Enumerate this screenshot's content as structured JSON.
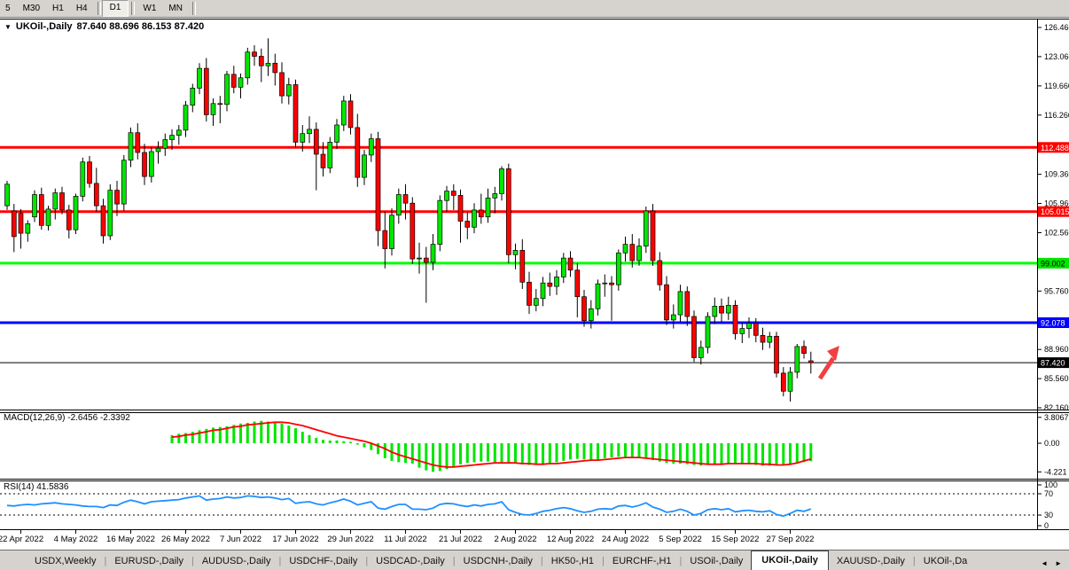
{
  "toolbar": {
    "groups": [
      [
        "5",
        "M30",
        "H1",
        "H4"
      ],
      [
        "D1"
      ],
      [
        "W1",
        "MN"
      ]
    ],
    "active": "D1"
  },
  "chart_title": {
    "symbol": "UKOil-,Daily",
    "ohlc": "87.640 88.696 86.153 87.420"
  },
  "indicators": {
    "macd_label": "MACD(12,26,9) -2.6456 -2.3392",
    "rsi_label": "RSI(14) 41.5836"
  },
  "icons": {
    "chart_menu": "▼",
    "tab_scroll_left": "◄",
    "tab_scroll_right": "►"
  },
  "tabs": {
    "items": [
      {
        "label": "USDX,Weekly"
      },
      {
        "label": "EURUSD-,Daily"
      },
      {
        "label": "AUDUSD-,Daily"
      },
      {
        "label": "USDCHF-,Daily"
      },
      {
        "label": "USDCAD-,Daily"
      },
      {
        "label": "USDCNH-,Daily"
      },
      {
        "label": "HK50-,H1"
      },
      {
        "label": "EURCHF-,H1"
      },
      {
        "label": "USOil-,Daily"
      },
      {
        "label": "UKOil-,Daily",
        "active": true
      },
      {
        "label": "XAUUSD-,Daily"
      },
      {
        "label": "UKOil-,Da",
        "truncated": true
      }
    ]
  },
  "chart_data": {
    "type": "candlestick",
    "symbol": "UKOil-,Daily",
    "timeframe": "D1",
    "last_ohlc": {
      "open": "87.640",
      "high": "88.696",
      "low": "86.153",
      "close": "87.420"
    },
    "colors": {
      "up": "#00E600",
      "down": "#FF0000",
      "wick": "#000000",
      "bg": "#FFFFFF"
    },
    "price_axis": {
      "ticks": [
        "126.460",
        "123.060",
        "119.660",
        "116.260",
        "109.360",
        "105.960",
        "102.560",
        "95.760",
        "88.960",
        "85.560",
        "82.160"
      ],
      "tags": [
        {
          "label": "112.488",
          "bg": "#FF0000",
          "fg": "#FFFFFF"
        },
        {
          "label": "105.015",
          "bg": "#FF0000",
          "fg": "#FFFFFF"
        },
        {
          "label": "99.002",
          "bg": "#00E600",
          "fg": "#000000"
        },
        {
          "label": "92.078",
          "bg": "#0000FF",
          "fg": "#FFFFFF"
        },
        {
          "label": "87.420",
          "bg": "#000000",
          "fg": "#FFFFFF"
        }
      ]
    },
    "hlines": [
      {
        "price": 112.488,
        "color": "#FF0000",
        "width": 3
      },
      {
        "price": 105.015,
        "color": "#FF0000",
        "width": 3
      },
      {
        "price": 99.002,
        "color": "#00FF00",
        "width": 3
      },
      {
        "price": 92.078,
        "color": "#0000FF",
        "width": 3
      },
      {
        "price": 87.42,
        "color": "#000000",
        "width": 1
      }
    ],
    "date_ticks": [
      {
        "label": "22 Apr 2022",
        "i": 2
      },
      {
        "label": "4 May 2022",
        "i": 10
      },
      {
        "label": "16 May 2022",
        "i": 18
      },
      {
        "label": "26 May 2022",
        "i": 26
      },
      {
        "label": "7 Jun 2022",
        "i": 34
      },
      {
        "label": "17 Jun 2022",
        "i": 42
      },
      {
        "label": "29 Jun 2022",
        "i": 50
      },
      {
        "label": "11 Jul 2022",
        "i": 58
      },
      {
        "label": "21 Jul 2022",
        "i": 66
      },
      {
        "label": "2 Aug 2022",
        "i": 74
      },
      {
        "label": "12 Aug 2022",
        "i": 82
      },
      {
        "label": "24 Aug 2022",
        "i": 90
      },
      {
        "label": "5 Sep 2022",
        "i": 98
      },
      {
        "label": "15 Sep 2022",
        "i": 106
      },
      {
        "label": "27 Sep 2022",
        "i": 114
      }
    ],
    "candles": [
      [
        105.7,
        108.6,
        105.2,
        108.2
      ],
      [
        105.1,
        105.9,
        100.3,
        102.1
      ],
      [
        104.8,
        105.3,
        100.7,
        102.5
      ],
      [
        102.5,
        104.0,
        101.5,
        103.6
      ],
      [
        104.4,
        107.5,
        103.8,
        107.0
      ],
      [
        107.0,
        107.8,
        102.9,
        103.4
      ],
      [
        103.4,
        105.7,
        102.8,
        105.3
      ],
      [
        105.3,
        107.7,
        104.1,
        107.2
      ],
      [
        107.2,
        107.9,
        104.7,
        105.2
      ],
      [
        105.2,
        105.8,
        101.9,
        102.9
      ],
      [
        102.9,
        107.1,
        102.4,
        106.8
      ],
      [
        106.8,
        111.3,
        106.2,
        110.8
      ],
      [
        110.8,
        111.5,
        107.8,
        108.3
      ],
      [
        108.3,
        110.1,
        105.0,
        105.7
      ],
      [
        105.7,
        106.5,
        101.3,
        102.2
      ],
      [
        102.2,
        108.2,
        101.7,
        107.5
      ],
      [
        107.5,
        108.6,
        104.5,
        105.9
      ],
      [
        105.9,
        111.6,
        105.1,
        111.0
      ],
      [
        111.0,
        114.8,
        110.2,
        114.2
      ],
      [
        114.2,
        115.3,
        111.1,
        111.9
      ],
      [
        111.9,
        112.9,
        108.1,
        109.1
      ],
      [
        109.1,
        112.5,
        108.4,
        112.0
      ],
      [
        112.0,
        113.2,
        110.6,
        112.4
      ],
      [
        112.4,
        114.1,
        111.5,
        113.4
      ],
      [
        113.4,
        114.6,
        112.2,
        113.9
      ],
      [
        113.9,
        115.1,
        112.8,
        114.5
      ],
      [
        114.5,
        117.9,
        113.7,
        117.4
      ],
      [
        117.4,
        119.9,
        116.6,
        119.4
      ],
      [
        119.4,
        122.3,
        118.7,
        121.7
      ],
      [
        121.7,
        122.9,
        115.5,
        116.3
      ],
      [
        116.3,
        118.2,
        115.0,
        117.6
      ],
      [
        117.6,
        118.5,
        115.3,
        117.5
      ],
      [
        117.5,
        121.4,
        116.7,
        121.0
      ],
      [
        121.0,
        122.0,
        118.8,
        119.5
      ],
      [
        119.5,
        121.1,
        118.2,
        120.6
      ],
      [
        120.6,
        124.1,
        119.8,
        123.6
      ],
      [
        123.6,
        124.4,
        122.0,
        123.1
      ],
      [
        123.1,
        124.0,
        120.1,
        122.0
      ],
      [
        122.0,
        125.2,
        120.8,
        122.3
      ],
      [
        122.3,
        123.4,
        119.7,
        121.2
      ],
      [
        121.2,
        122.4,
        117.6,
        118.5
      ],
      [
        118.5,
        120.6,
        117.5,
        119.8
      ],
      [
        119.8,
        120.4,
        112.5,
        113.1
      ],
      [
        113.1,
        115.1,
        112.0,
        114.1
      ],
      [
        114.1,
        116.1,
        113.0,
        114.6
      ],
      [
        114.6,
        115.4,
        107.5,
        111.7
      ],
      [
        111.7,
        113.1,
        109.1,
        110.1
      ],
      [
        110.1,
        113.7,
        109.5,
        113.1
      ],
      [
        113.1,
        115.8,
        112.3,
        115.1
      ],
      [
        115.1,
        118.5,
        114.4,
        117.9
      ],
      [
        117.9,
        118.7,
        114.0,
        114.8
      ],
      [
        114.8,
        116.4,
        107.9,
        109.0
      ],
      [
        109.0,
        112.2,
        108.1,
        111.6
      ],
      [
        111.6,
        114.1,
        110.8,
        113.5
      ],
      [
        113.5,
        114.3,
        101.0,
        102.8
      ],
      [
        102.8,
        105.0,
        98.4,
        100.7
      ],
      [
        100.7,
        105.4,
        99.9,
        104.6
      ],
      [
        104.6,
        107.7,
        103.6,
        107.0
      ],
      [
        107.0,
        108.2,
        104.1,
        106.0
      ],
      [
        106.0,
        106.7,
        98.9,
        99.5
      ],
      [
        99.5,
        101.4,
        97.8,
        99.6
      ],
      [
        99.6,
        100.9,
        94.4,
        99.1
      ],
      [
        99.1,
        102.4,
        98.2,
        101.2
      ],
      [
        101.2,
        106.9,
        100.4,
        106.3
      ],
      [
        106.3,
        108.0,
        105.0,
        107.4
      ],
      [
        107.4,
        108.2,
        105.2,
        106.9
      ],
      [
        106.9,
        107.6,
        101.4,
        103.9
      ],
      [
        103.9,
        104.9,
        101.8,
        103.2
      ],
      [
        103.2,
        106.0,
        102.5,
        105.2
      ],
      [
        105.2,
        107.1,
        103.6,
        104.4
      ],
      [
        104.4,
        107.7,
        103.7,
        106.6
      ],
      [
        106.6,
        107.9,
        104.8,
        107.1
      ],
      [
        107.1,
        110.3,
        106.3,
        110.0
      ],
      [
        110.0,
        110.6,
        99.0,
        100.0
      ],
      [
        100.0,
        101.3,
        98.3,
        100.5
      ],
      [
        100.5,
        101.8,
        96.0,
        96.8
      ],
      [
        96.8,
        98.0,
        93.1,
        94.1
      ],
      [
        94.1,
        96.0,
        93.4,
        94.9
      ],
      [
        94.9,
        97.4,
        94.0,
        96.7
      ],
      [
        96.7,
        97.9,
        95.2,
        96.3
      ],
      [
        96.3,
        98.2,
        95.3,
        97.4
      ],
      [
        97.4,
        100.2,
        96.7,
        99.6
      ],
      [
        99.6,
        100.4,
        97.4,
        98.2
      ],
      [
        98.2,
        99.0,
        92.7,
        95.1
      ],
      [
        95.1,
        95.9,
        91.6,
        92.3
      ],
      [
        92.3,
        94.7,
        91.4,
        93.7
      ],
      [
        93.7,
        97.1,
        92.9,
        96.6
      ],
      [
        96.6,
        97.7,
        95.1,
        96.7
      ],
      [
        96.7,
        97.5,
        92.3,
        96.5
      ],
      [
        96.5,
        100.6,
        95.8,
        100.2
      ],
      [
        100.2,
        102.1,
        99.2,
        101.2
      ],
      [
        101.2,
        102.4,
        98.5,
        99.3
      ],
      [
        99.3,
        101.9,
        98.7,
        101.0
      ],
      [
        101.0,
        105.6,
        100.2,
        105.1
      ],
      [
        105.1,
        105.9,
        98.7,
        99.3
      ],
      [
        99.3,
        100.3,
        95.8,
        96.5
      ],
      [
        96.5,
        97.5,
        91.8,
        92.4
      ],
      [
        92.4,
        94.2,
        91.4,
        93.0
      ],
      [
        93.0,
        96.5,
        92.2,
        95.7
      ],
      [
        95.7,
        96.3,
        91.7,
        92.8
      ],
      [
        92.8,
        93.5,
        87.5,
        88.0
      ],
      [
        88.0,
        90.0,
        87.2,
        89.2
      ],
      [
        89.2,
        93.3,
        88.5,
        92.8
      ],
      [
        92.8,
        95.0,
        91.9,
        94.0
      ],
      [
        94.0,
        94.9,
        92.1,
        93.2
      ],
      [
        93.2,
        95.1,
        92.4,
        94.1
      ],
      [
        94.1,
        94.7,
        90.1,
        90.8
      ],
      [
        90.8,
        92.1,
        89.7,
        91.4
      ],
      [
        91.4,
        92.7,
        90.3,
        92.0
      ],
      [
        92.0,
        92.6,
        89.8,
        90.6
      ],
      [
        90.6,
        91.5,
        88.9,
        89.8
      ],
      [
        89.8,
        91.0,
        89.1,
        90.5
      ],
      [
        90.5,
        91.0,
        85.7,
        86.2
      ],
      [
        86.2,
        86.9,
        83.5,
        84.1
      ],
      [
        84.1,
        86.9,
        82.9,
        86.3
      ],
      [
        86.3,
        89.6,
        85.6,
        89.3
      ],
      [
        89.3,
        90.0,
        87.9,
        88.5
      ],
      [
        87.64,
        88.696,
        86.153,
        87.42
      ]
    ],
    "macd": {
      "params": "12,26,9",
      "values": [
        -2.6456,
        -2.3392
      ],
      "axis": [
        "3.8067",
        "0.00",
        "-4.221"
      ],
      "hist_color": "#00E600",
      "signal_color": "#FF0000",
      "hist": [
        null,
        null,
        null,
        null,
        null,
        null,
        null,
        null,
        null,
        null,
        null,
        null,
        null,
        null,
        null,
        null,
        null,
        null,
        null,
        null,
        null,
        null,
        null,
        null,
        1.2,
        1.4,
        1.5,
        1.7,
        1.9,
        2.1,
        2.3,
        2.4,
        2.5,
        2.7,
        2.9,
        3.0,
        3.2,
        3.3,
        3.2,
        3.1,
        2.9,
        2.6,
        2.2,
        1.7,
        1.2,
        0.8,
        0.5,
        0.4,
        0.4,
        0.3,
        0.2,
        -0.2,
        -0.6,
        -1.0,
        -1.6,
        -2.2,
        -2.6,
        -2.8,
        -2.9,
        -3.0,
        -3.6,
        -4.0,
        -4.2,
        -4.1,
        -3.8,
        -3.4,
        -3.1,
        -2.9,
        -2.8,
        -2.7,
        -2.7,
        -2.8,
        -2.8,
        -2.9,
        -3.0,
        -3.1,
        -3.2,
        -3.1,
        -3.0,
        -2.9,
        -2.8,
        -2.6,
        -2.4,
        -2.3,
        -2.4,
        -2.5,
        -2.4,
        -2.2,
        -2.1,
        -2.0,
        -2.0,
        -2.1,
        -2.2,
        -2.3,
        -2.5,
        -2.7,
        -2.9,
        -3.0,
        -3.0,
        -3.1,
        -3.2,
        -3.3,
        -3.2,
        -3.1,
        -3.0,
        -2.9,
        -2.9,
        -3.0,
        -3.1,
        -3.2,
        -3.3,
        -3.3,
        -3.2,
        -3.1,
        -3.0,
        -2.9,
        -2.8,
        -2.6456
      ],
      "signal": [
        null,
        null,
        null,
        null,
        null,
        null,
        null,
        null,
        null,
        null,
        null,
        null,
        null,
        null,
        null,
        null,
        null,
        null,
        null,
        null,
        null,
        null,
        null,
        null,
        0.9,
        1.0,
        1.2,
        1.3,
        1.5,
        1.7,
        1.9,
        2.0,
        2.2,
        2.4,
        2.5,
        2.7,
        2.8,
        2.9,
        3.0,
        3.1,
        3.1,
        3.0,
        2.8,
        2.6,
        2.3,
        2.0,
        1.7,
        1.4,
        1.1,
        0.9,
        0.7,
        0.5,
        0.3,
        0.0,
        -0.4,
        -0.8,
        -1.3,
        -1.7,
        -2.0,
        -2.3,
        -2.6,
        -2.9,
        -3.2,
        -3.4,
        -3.5,
        -3.5,
        -3.4,
        -3.3,
        -3.2,
        -3.1,
        -3.0,
        -2.9,
        -2.9,
        -2.9,
        -2.9,
        -3.0,
        -3.0,
        -3.1,
        -3.1,
        -3.0,
        -3.0,
        -2.9,
        -2.8,
        -2.7,
        -2.6,
        -2.5,
        -2.5,
        -2.4,
        -2.3,
        -2.2,
        -2.1,
        -2.1,
        -2.1,
        -2.2,
        -2.3,
        -2.4,
        -2.5,
        -2.6,
        -2.7,
        -2.8,
        -2.9,
        -3.0,
        -3.1,
        -3.1,
        -3.1,
        -3.0,
        -3.0,
        -3.0,
        -3.0,
        -3.0,
        -3.1,
        -3.1,
        -3.2,
        -3.2,
        -3.1,
        -2.9,
        -2.6,
        -2.3392
      ]
    },
    "rsi": {
      "period": 14,
      "value": 41.5836,
      "axis": [
        "100",
        "70",
        "30",
        "0"
      ],
      "levels": [
        70,
        30
      ],
      "color": "#1E90FF",
      "series": [
        48,
        47,
        49,
        50,
        49,
        51,
        52,
        53,
        51,
        50,
        49,
        47,
        46,
        46,
        44,
        49,
        48,
        54,
        58,
        55,
        51,
        55,
        56,
        57,
        58,
        59,
        62,
        64,
        66,
        58,
        60,
        61,
        64,
        62,
        63,
        66,
        65,
        63,
        64,
        62,
        59,
        61,
        52,
        54,
        55,
        51,
        49,
        53,
        56,
        60,
        56,
        49,
        52,
        55,
        43,
        41,
        46,
        50,
        50,
        41,
        41,
        40,
        43,
        50,
        52,
        51,
        48,
        46,
        49,
        47,
        50,
        51,
        55,
        40,
        35,
        31,
        30,
        33,
        37,
        39,
        42,
        44,
        42,
        38,
        35,
        37,
        41,
        42,
        41,
        47,
        48,
        45,
        48,
        53,
        45,
        41,
        35,
        37,
        41,
        37,
        30,
        33,
        40,
        42,
        40,
        42,
        36,
        38,
        39,
        37,
        36,
        38,
        31,
        28,
        33,
        39,
        37,
        41.58
      ]
    },
    "arrow": {
      "color": "#F04040"
    }
  }
}
